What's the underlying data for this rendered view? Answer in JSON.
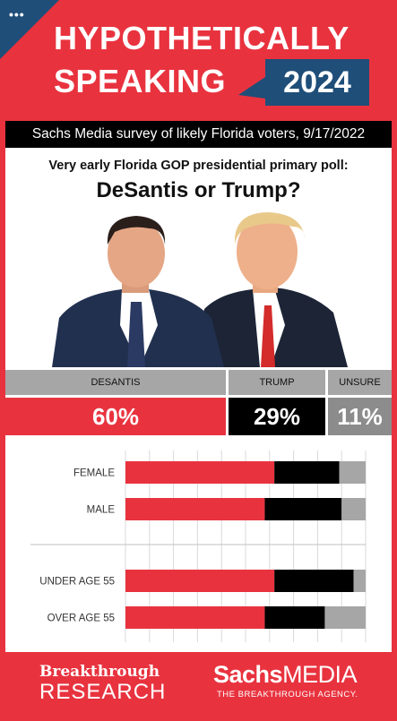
{
  "header": {
    "menu_glyph": "•••",
    "title_line1": "HYPOTHETICALLY",
    "title_line2": "SPEAKING",
    "year": "2024"
  },
  "survey": {
    "source": "Sachs Media survey of likely Florida voters, 9/17/2022",
    "question": "Very early Florida GOP presidential primary poll:",
    "headline": "DeSantis or Trump?"
  },
  "photos": [
    {
      "icon": "desantis-portrait-icon"
    },
    {
      "icon": "trump-portrait-icon"
    }
  ],
  "topline": [
    {
      "label": "DESANTIS",
      "value": "60%",
      "color": "#e8333f"
    },
    {
      "label": "TRUMP",
      "value": "29%",
      "color": "#000000"
    },
    {
      "label": "UNSURE",
      "value": "11%",
      "color": "#8c8c8c"
    }
  ],
  "chart_data": {
    "type": "bar",
    "orientation": "horizontal",
    "stacked": true,
    "normalized": true,
    "categories": [
      "FEMALE",
      "MALE",
      "UNDER AGE 55",
      "OVER AGE 55"
    ],
    "series": [
      {
        "name": "DESANTIS",
        "color": "#e8333f",
        "values": [
          62,
          58,
          62,
          58
        ]
      },
      {
        "name": "TRUMP",
        "color": "#000000",
        "values": [
          27,
          32,
          33,
          25
        ]
      },
      {
        "name": "UNSURE",
        "color": "#a6a6a6",
        "values": [
          11,
          10,
          5,
          17
        ]
      }
    ],
    "xlim": [
      0,
      100
    ],
    "grid": true,
    "group_separator_after_index": 1
  },
  "footer": {
    "left_line1": "Breakthrough",
    "left_line2": "RESEARCH",
    "right_bold": "Sachs",
    "right_light": "MEDIA",
    "right_tagline": "THE BREAKTHROUGH AGENCY."
  },
  "colors": {
    "background": "#e8333f",
    "navy": "#1f4e79",
    "black": "#000000",
    "gray": "#a6a6a6"
  }
}
